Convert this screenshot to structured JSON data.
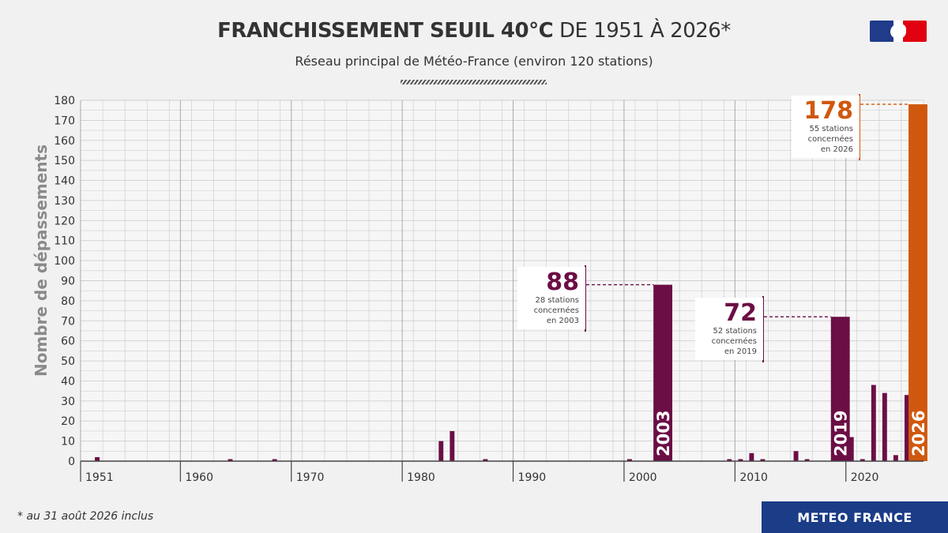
{
  "header": {
    "title_bold": "FRANCHISSEMENT SEUIL 40°C",
    "title_rest": " DE 1951 À 2026*",
    "subtitle": "Réseau principal de Météo-France (environ 120 stations)"
  },
  "footnote": "* au 31 août 2026 inclus",
  "brand": "METEO FRANCE",
  "callouts": [
    {
      "year": 2003,
      "value": "88",
      "lines": [
        "28 stations",
        "concernées",
        "en 2003"
      ],
      "color": "#6b0e45"
    },
    {
      "year": 2019,
      "value": "72",
      "lines": [
        "52 stations",
        "concernées",
        "en 2019"
      ],
      "color": "#6b0e45"
    },
    {
      "year": 2026,
      "value": "178",
      "lines": [
        "55 stations",
        "concernées",
        "en 2026"
      ],
      "color": "#d0580e"
    }
  ],
  "colors": {
    "bar": "#6b0e45",
    "highlight": "#d0580e",
    "grid": "#cfcfcf",
    "axis": "#444444"
  },
  "chart_data": {
    "type": "bar",
    "title": "FRANCHISSEMENT SEUIL 40°C DE 1951 À 2026*",
    "subtitle": "Réseau principal de Météo-France (environ 120 stations)",
    "xlabel": "",
    "ylabel": "Nombre de dépassements",
    "ylim": [
      0,
      180
    ],
    "xlim": [
      1951,
      2026
    ],
    "yticks": [
      0,
      10,
      20,
      30,
      40,
      50,
      60,
      70,
      80,
      90,
      100,
      110,
      120,
      130,
      140,
      150,
      160,
      170,
      180
    ],
    "xticks": [
      1951,
      1960,
      1970,
      1980,
      1990,
      2000,
      2010,
      2020
    ],
    "grid": true,
    "data_labels": [
      "2003",
      "2019",
      "2026"
    ],
    "points": [
      {
        "year": 1952,
        "value": 2
      },
      {
        "year": 1964,
        "value": 1
      },
      {
        "year": 1968,
        "value": 1
      },
      {
        "year": 1983,
        "value": 10
      },
      {
        "year": 1984,
        "value": 15
      },
      {
        "year": 1987,
        "value": 1
      },
      {
        "year": 2000,
        "value": 1
      },
      {
        "year": 2003,
        "value": 88
      },
      {
        "year": 2009,
        "value": 1
      },
      {
        "year": 2010,
        "value": 1
      },
      {
        "year": 2011,
        "value": 4
      },
      {
        "year": 2012,
        "value": 1
      },
      {
        "year": 2015,
        "value": 5
      },
      {
        "year": 2016,
        "value": 1
      },
      {
        "year": 2019,
        "value": 72
      },
      {
        "year": 2020,
        "value": 12
      },
      {
        "year": 2021,
        "value": 1
      },
      {
        "year": 2022,
        "value": 38
      },
      {
        "year": 2023,
        "value": 34
      },
      {
        "year": 2024,
        "value": 3
      },
      {
        "year": 2025,
        "value": 33
      },
      {
        "year": 2026,
        "value": 178
      }
    ]
  }
}
